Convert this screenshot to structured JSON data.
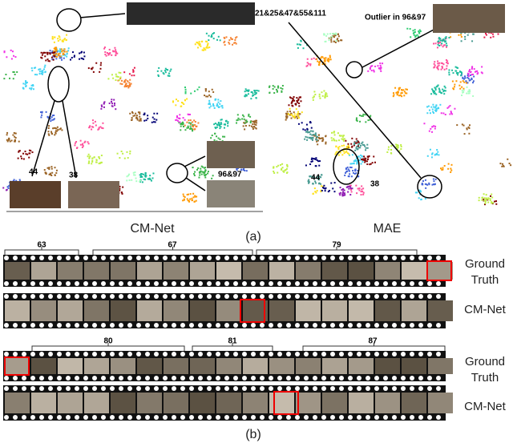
{
  "panel_a": {
    "left": {
      "title": "CM-Net",
      "labels": [
        "44",
        "38",
        "96&97"
      ]
    },
    "right": {
      "title": "MAE",
      "labels": [
        "21&25&47&55&111",
        "Outlier in 96&97",
        "44",
        "38"
      ]
    },
    "caption": "(a)"
  },
  "panel_b": {
    "top": {
      "segments": [
        "63",
        "67",
        "79"
      ],
      "rows": [
        "Ground Truth",
        "CM-Net"
      ]
    },
    "bottom": {
      "segments": [
        "80",
        "81",
        "87"
      ],
      "rows": [
        "Ground Truth",
        "CM-Net"
      ]
    },
    "caption": "(b)"
  }
}
